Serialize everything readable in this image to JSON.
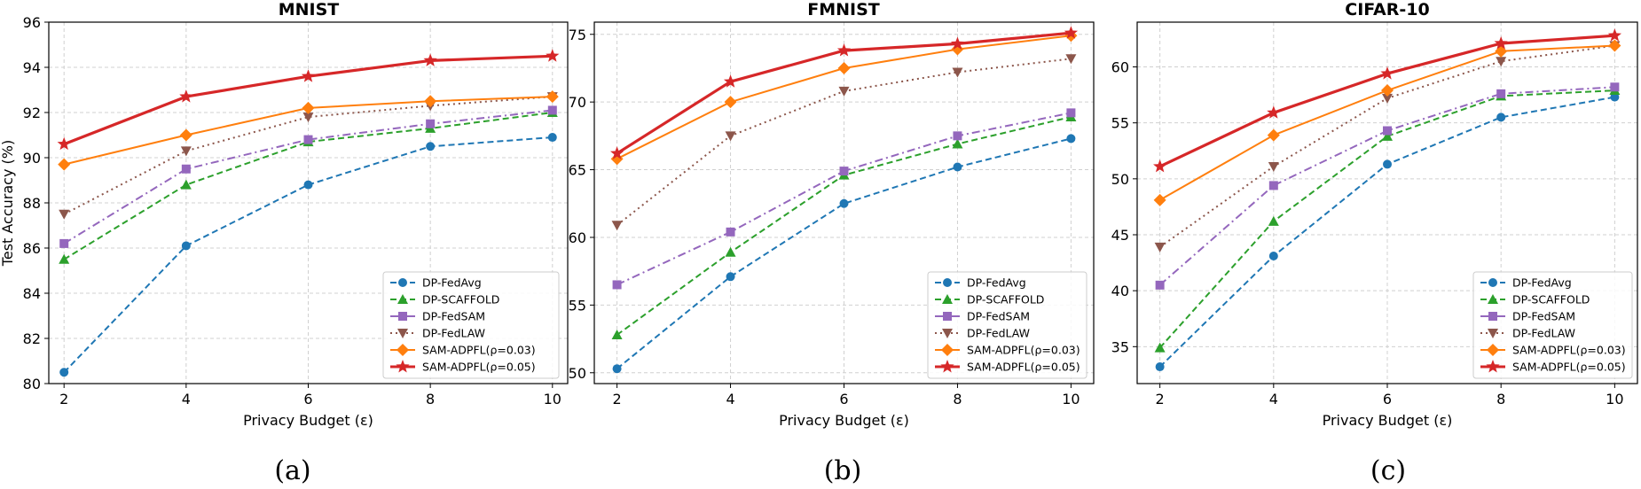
{
  "chart_data": [
    {
      "type": "line",
      "title": "MNIST",
      "xlabel": "Privacy Budget (ε)",
      "ylabel": "Test Accuracy (%)",
      "caption": "(a)",
      "x": [
        2,
        4,
        6,
        8,
        10
      ],
      "xlim": [
        1.75,
        10.25
      ],
      "ylim": [
        80,
        96
      ],
      "xticks": [
        "2",
        "4",
        "6",
        "8",
        "10"
      ],
      "yticks": [
        "80",
        "82",
        "84",
        "86",
        "88",
        "90",
        "92",
        "94",
        "96"
      ],
      "grid": true,
      "legend_position": "lower right",
      "series": [
        {
          "name": "DP-FedAvg",
          "values": [
            80.5,
            86.1,
            88.8,
            90.5,
            90.9
          ]
        },
        {
          "name": "DP-SCAFFOLD",
          "values": [
            85.5,
            88.8,
            90.7,
            91.3,
            92.0
          ]
        },
        {
          "name": "DP-FedSAM",
          "values": [
            86.2,
            89.5,
            90.8,
            91.5,
            92.1
          ]
        },
        {
          "name": "DP-FedLAW",
          "values": [
            87.5,
            90.3,
            91.8,
            92.3,
            92.7
          ]
        },
        {
          "name": "SAM-ADPFL(ρ=0.03)",
          "values": [
            89.7,
            91.0,
            92.2,
            92.5,
            92.7
          ]
        },
        {
          "name": "SAM-ADPFL(ρ=0.05)",
          "values": [
            90.6,
            92.7,
            93.6,
            94.3,
            94.5
          ]
        }
      ]
    },
    {
      "type": "line",
      "title": "FMNIST",
      "xlabel": "Privacy Budget (ε)",
      "ylabel": "",
      "caption": "(b)",
      "x": [
        2,
        4,
        6,
        8,
        10
      ],
      "xlim": [
        1.6,
        10.4
      ],
      "ylim": [
        49.2,
        75.9
      ],
      "xticks": [
        "2",
        "4",
        "6",
        "8",
        "10"
      ],
      "yticks": [
        "50",
        "55",
        "60",
        "65",
        "70",
        "75"
      ],
      "grid": true,
      "legend_position": "lower right",
      "series": [
        {
          "name": "DP-FedAvg",
          "values": [
            50.3,
            57.1,
            62.5,
            65.2,
            67.3
          ]
        },
        {
          "name": "DP-SCAFFOLD",
          "values": [
            52.8,
            58.9,
            64.6,
            66.9,
            68.9
          ]
        },
        {
          "name": "DP-FedSAM",
          "values": [
            56.5,
            60.4,
            64.9,
            67.5,
            69.2
          ]
        },
        {
          "name": "DP-FedLAW",
          "values": [
            60.9,
            67.5,
            70.8,
            72.2,
            73.2
          ]
        },
        {
          "name": "SAM-ADPFL(ρ=0.03)",
          "values": [
            65.8,
            70.0,
            72.5,
            73.9,
            74.9
          ]
        },
        {
          "name": "SAM-ADPFL(ρ=0.05)",
          "values": [
            66.2,
            71.5,
            73.8,
            74.3,
            75.1
          ]
        }
      ]
    },
    {
      "type": "line",
      "title": "CIFAR-10",
      "xlabel": "Privacy Budget (ε)",
      "ylabel": "",
      "caption": "(c)",
      "x": [
        2,
        4,
        6,
        8,
        10
      ],
      "xlim": [
        1.6,
        10.4
      ],
      "ylim": [
        31.7,
        64.0
      ],
      "xticks": [
        "2",
        "4",
        "6",
        "8",
        "10"
      ],
      "yticks": [
        "35",
        "40",
        "45",
        "50",
        "55",
        "60"
      ],
      "grid": true,
      "legend_position": "lower right",
      "series": [
        {
          "name": "DP-FedAvg",
          "values": [
            33.2,
            43.1,
            51.3,
            55.5,
            57.3
          ]
        },
        {
          "name": "DP-SCAFFOLD",
          "values": [
            34.9,
            46.2,
            53.8,
            57.4,
            57.9
          ]
        },
        {
          "name": "DP-FedSAM",
          "values": [
            40.5,
            49.4,
            54.3,
            57.6,
            58.2
          ]
        },
        {
          "name": "DP-FedLAW",
          "values": [
            43.9,
            51.1,
            57.2,
            60.5,
            61.9
          ]
        },
        {
          "name": "SAM-ADPFL(ρ=0.03)",
          "values": [
            48.1,
            53.9,
            57.9,
            61.4,
            61.9
          ]
        },
        {
          "name": "SAM-ADPFL(ρ=0.05)",
          "values": [
            51.1,
            55.9,
            59.4,
            62.1,
            62.8
          ]
        }
      ]
    }
  ],
  "series_style": [
    {
      "color": "#1f77b4",
      "dash": "dashed",
      "marker": "circle",
      "width": "normal"
    },
    {
      "color": "#2ca02c",
      "dash": "dashed",
      "marker": "triangle",
      "width": "normal"
    },
    {
      "color": "#9467bd",
      "dash": "dash-dot",
      "marker": "square",
      "width": "normal"
    },
    {
      "color": "#8c564b",
      "dash": "dotted",
      "marker": "triangle-down",
      "width": "normal"
    },
    {
      "color": "#ff7f0e",
      "dash": "solid",
      "marker": "diamond",
      "width": "normal"
    },
    {
      "color": "#d62728",
      "dash": "solid",
      "marker": "star",
      "width": "thick"
    }
  ]
}
